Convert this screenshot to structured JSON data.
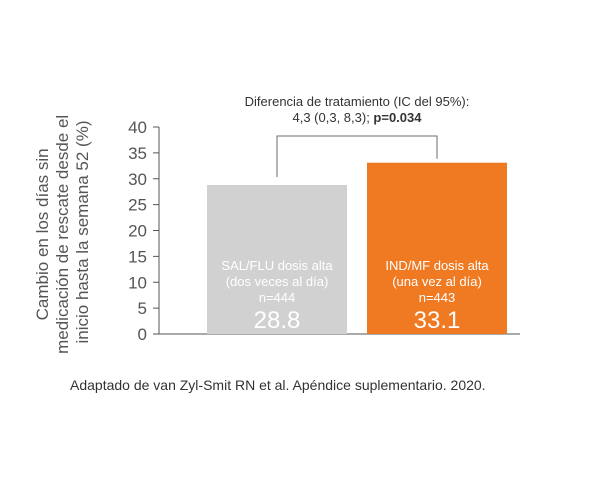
{
  "chart_data": {
    "type": "bar",
    "title": "",
    "xlabel": "",
    "ylabel_lines": [
      "Cambio en los días sin",
      "medicación de rescate desde el",
      "inicio hasta la semana 52 (%)"
    ],
    "ylim": [
      0,
      40
    ],
    "yticks": [
      "0",
      "5",
      "10",
      "15",
      "20",
      "25",
      "30",
      "35",
      "40"
    ],
    "categories": [
      "SAL/FLU dosis alta",
      "IND/MF dosis alta"
    ],
    "bars": [
      {
        "name": "SAL/FLU dosis alta",
        "regimen": "(dos veces al día)",
        "n": "n=444",
        "value": 28.8,
        "value_label": "28.8",
        "color": "#d1d1d1"
      },
      {
        "name": "IND/MF dosis alta",
        "regimen": "(una vez al día)",
        "n": "n=443",
        "value": 33.1,
        "value_label": "33.1",
        "color": "#f07a22"
      }
    ],
    "annotation": {
      "line1": "Diferencia de tratamiento (IC del 95%):",
      "line2_main": "4,3  (0,3, 8,3); ",
      "line2_bold": "p=0.034"
    },
    "grid": false
  },
  "footnote": "Adaptado de van Zyl-Smit RN et al.   Apéndice suplementario.  2020.",
  "colors": {
    "axis": "#555555",
    "bracket": "#6b6b6b",
    "bar_text": "#ffffff"
  }
}
